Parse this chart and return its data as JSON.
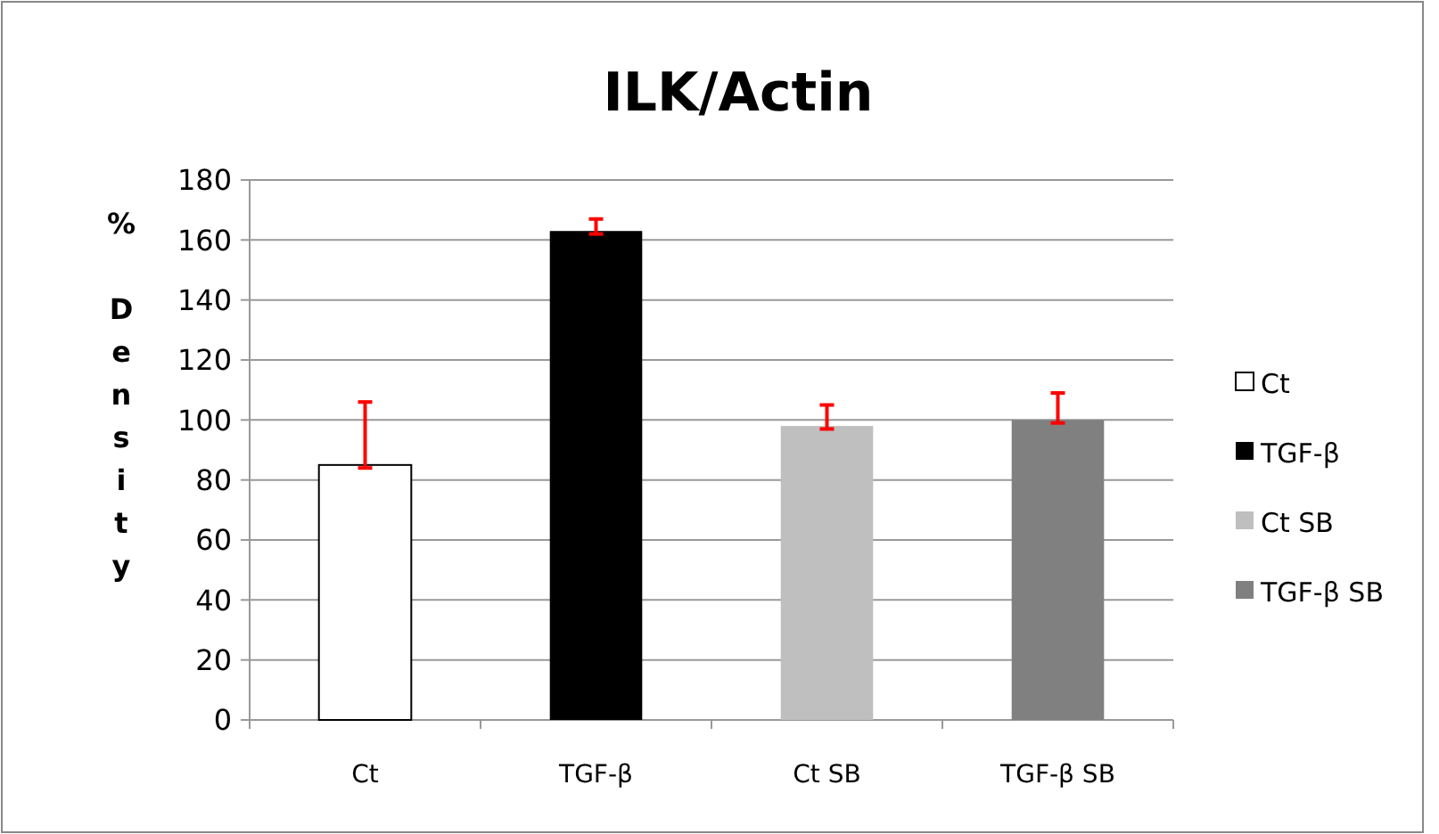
{
  "chart_data": {
    "type": "bar",
    "title": "ILK/Actin",
    "ylabel": "% Density",
    "categories": [
      "Ct",
      "TGF-β",
      "Ct SB",
      "TGF-β SB"
    ],
    "stacked": true,
    "series": [
      {
        "name": "Ct",
        "color": "#ffffff",
        "values": [
          85,
          null,
          null,
          null
        ],
        "errors": [
          [
            84,
            106
          ],
          null,
          null,
          null
        ]
      },
      {
        "name": "TGF-β",
        "color": "#000000",
        "values": [
          null,
          163,
          null,
          null
        ],
        "errors": [
          null,
          [
            162,
            167
          ],
          null,
          null
        ]
      },
      {
        "name": "Ct SB",
        "color": "#bfbfbf",
        "values": [
          null,
          null,
          98,
          null
        ],
        "errors": [
          null,
          null,
          [
            97,
            105
          ],
          null
        ]
      },
      {
        "name": "TGF-β SB",
        "color": "#808080",
        "values": [
          null,
          null,
          null,
          100
        ],
        "errors": [
          null,
          null,
          null,
          [
            99,
            109
          ]
        ]
      }
    ],
    "ylim": [
      0,
      180
    ],
    "yticks": [
      0,
      20,
      40,
      60,
      80,
      100,
      120,
      140,
      160,
      180
    ],
    "grid": "y",
    "legend": "right"
  }
}
